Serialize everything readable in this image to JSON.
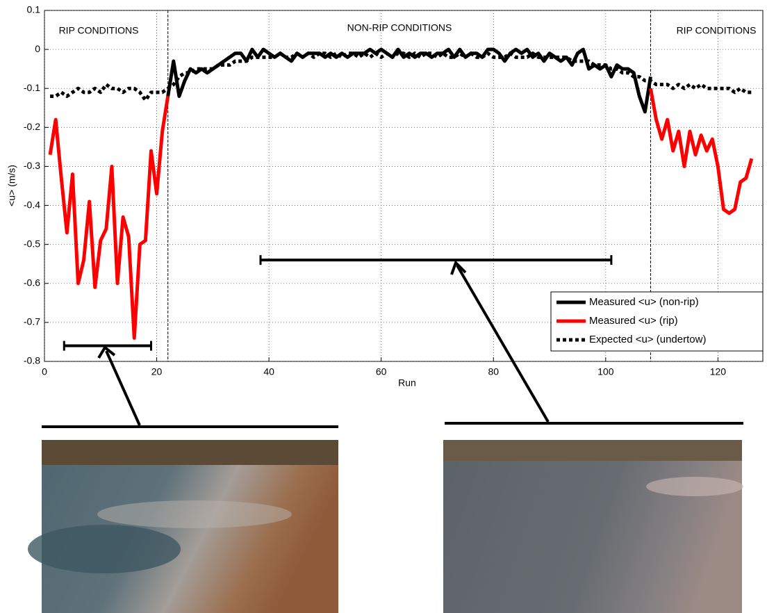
{
  "chart_data": {
    "type": "line",
    "xlabel": "Run",
    "ylabel": "<u> (m/s)",
    "xlim": [
      0,
      128
    ],
    "xticks": [
      0,
      20,
      40,
      60,
      80,
      100,
      120
    ],
    "ylim": [
      -0.8,
      0.1
    ],
    "yticks": [
      -0.8,
      -0.7,
      -0.6,
      -0.5,
      -0.4,
      -0.3,
      -0.2,
      -0.1,
      0,
      0.1
    ],
    "grid": true,
    "legend": "lower right",
    "annotations": [
      "RIP CONDITIONS",
      "NON-RIP CONDITIONS",
      "RIP CONDITIONS"
    ],
    "vlines": [
      22,
      108
    ],
    "ranges": [
      {
        "x": [
          3.5,
          19
        ],
        "y": -0.76
      },
      {
        "x": [
          38.5,
          101
        ],
        "y": -0.54
      }
    ],
    "x": [
      1,
      2,
      3,
      4,
      5,
      6,
      7,
      8,
      9,
      10,
      11,
      12,
      13,
      14,
      15,
      16,
      17,
      18,
      19,
      20,
      21,
      22,
      23,
      24,
      25,
      26,
      27,
      28,
      29,
      30,
      31,
      32,
      33,
      34,
      35,
      36,
      37,
      38,
      39,
      40,
      41,
      42,
      43,
      44,
      45,
      46,
      47,
      48,
      49,
      50,
      51,
      52,
      53,
      54,
      55,
      56,
      57,
      58,
      59,
      60,
      61,
      62,
      63,
      64,
      65,
      66,
      67,
      68,
      69,
      70,
      71,
      72,
      73,
      74,
      75,
      76,
      77,
      78,
      79,
      80,
      81,
      82,
      83,
      84,
      85,
      86,
      87,
      88,
      89,
      90,
      91,
      92,
      93,
      94,
      95,
      96,
      97,
      98,
      99,
      100,
      101,
      102,
      103,
      104,
      105,
      106,
      107,
      108,
      109,
      110,
      111,
      112,
      113,
      114,
      115,
      116,
      117,
      118,
      119,
      120,
      121,
      122,
      123,
      124,
      125,
      126
    ],
    "series": [
      {
        "name": "Measured <u> (non-rip)",
        "color": "#000000",
        "style": "solid",
        "values": [
          null,
          null,
          null,
          null,
          null,
          null,
          null,
          null,
          null,
          null,
          null,
          null,
          null,
          null,
          null,
          null,
          null,
          null,
          null,
          null,
          null,
          -0.12,
          -0.03,
          -0.12,
          -0.08,
          -0.05,
          -0.06,
          -0.05,
          -0.06,
          -0.05,
          -0.04,
          -0.03,
          -0.02,
          -0.01,
          -0.01,
          -0.03,
          0,
          -0.02,
          0,
          -0.01,
          -0.02,
          -0.01,
          -0.02,
          -0.03,
          -0.01,
          -0.02,
          -0.01,
          -0.01,
          -0.01,
          -0.02,
          -0.01,
          -0.02,
          -0.01,
          -0.02,
          -0.01,
          -0.01,
          -0.01,
          0,
          -0.01,
          0,
          -0.01,
          -0.02,
          0,
          -0.02,
          -0.01,
          -0.02,
          -0.01,
          -0.01,
          -0.02,
          -0.01,
          -0.01,
          0,
          -0.02,
          0,
          -0.02,
          -0.01,
          -0.01,
          -0.02,
          0,
          0,
          -0.01,
          -0.03,
          -0.01,
          0,
          -0.01,
          0,
          -0.02,
          -0.01,
          -0.03,
          -0.01,
          -0.02,
          -0.03,
          -0.02,
          -0.04,
          -0.01,
          0,
          -0.05,
          -0.04,
          -0.05,
          -0.04,
          -0.07,
          -0.04,
          -0.05,
          -0.05,
          -0.06,
          -0.12,
          -0.16,
          -0.07,
          null,
          null,
          null,
          null,
          null,
          null,
          null,
          null,
          null,
          null,
          null,
          null,
          null,
          null,
          null,
          null,
          null,
          null
        ]
      },
      {
        "name": "Measured <u> (rip)",
        "color": "#ff0000",
        "style": "solid",
        "values": [
          -0.27,
          -0.18,
          -0.33,
          -0.47,
          -0.32,
          -0.6,
          -0.54,
          -0.39,
          -0.61,
          -0.49,
          -0.46,
          -0.3,
          -0.6,
          -0.43,
          -0.48,
          -0.74,
          -0.5,
          -0.49,
          -0.26,
          -0.37,
          -0.21,
          -0.12,
          null,
          null,
          null,
          null,
          null,
          null,
          null,
          null,
          null,
          null,
          null,
          null,
          null,
          null,
          null,
          null,
          null,
          null,
          null,
          null,
          null,
          null,
          null,
          null,
          null,
          null,
          null,
          null,
          null,
          null,
          null,
          null,
          null,
          null,
          null,
          null,
          null,
          null,
          null,
          null,
          null,
          null,
          null,
          null,
          null,
          null,
          null,
          null,
          null,
          null,
          null,
          null,
          null,
          null,
          null,
          null,
          null,
          null,
          null,
          null,
          null,
          null,
          null,
          null,
          null,
          null,
          null,
          null,
          null,
          null,
          null,
          null,
          null,
          null,
          null,
          null,
          null,
          null,
          null,
          null,
          null,
          null,
          null,
          null,
          null,
          -0.1,
          -0.18,
          -0.23,
          -0.18,
          -0.26,
          -0.21,
          -0.3,
          -0.21,
          -0.27,
          -0.22,
          -0.26,
          -0.23,
          -0.3,
          -0.41,
          -0.42,
          -0.41,
          -0.34,
          -0.33,
          -0.28
        ]
      },
      {
        "name": "Expected <u> (undertow)",
        "color": "#000000",
        "style": "dotted",
        "values": [
          -0.12,
          -0.12,
          -0.11,
          -0.12,
          -0.11,
          -0.1,
          -0.11,
          -0.11,
          -0.1,
          -0.11,
          -0.09,
          -0.1,
          -0.1,
          -0.11,
          -0.1,
          -0.1,
          -0.11,
          -0.13,
          -0.11,
          -0.11,
          -0.11,
          -0.1,
          -0.09,
          -0.07,
          -0.06,
          -0.06,
          -0.05,
          -0.05,
          -0.05,
          -0.05,
          -0.04,
          -0.04,
          -0.04,
          -0.03,
          -0.03,
          -0.03,
          -0.02,
          -0.02,
          -0.02,
          -0.02,
          -0.02,
          -0.01,
          -0.02,
          -0.02,
          -0.01,
          -0.02,
          -0.01,
          -0.02,
          -0.01,
          -0.01,
          -0.02,
          -0.01,
          -0.02,
          -0.01,
          -0.01,
          -0.02,
          -0.01,
          -0.02,
          -0.01,
          -0.02,
          -0.01,
          -0.02,
          -0.01,
          -0.01,
          -0.02,
          -0.01,
          -0.02,
          -0.01,
          -0.01,
          -0.02,
          -0.01,
          -0.02,
          -0.02,
          -0.01,
          -0.02,
          -0.01,
          -0.02,
          -0.02,
          -0.01,
          -0.02,
          -0.02,
          -0.02,
          -0.01,
          -0.02,
          -0.02,
          -0.02,
          -0.01,
          -0.02,
          -0.02,
          -0.02,
          -0.02,
          -0.02,
          -0.02,
          -0.03,
          -0.03,
          -0.03,
          -0.03,
          -0.04,
          -0.04,
          -0.04,
          -0.05,
          -0.05,
          -0.06,
          -0.06,
          -0.07,
          -0.07,
          -0.08,
          -0.08,
          -0.09,
          -0.09,
          -0.09,
          -0.1,
          -0.09,
          -0.1,
          -0.09,
          -0.1,
          -0.09,
          -0.1,
          -0.1,
          -0.1,
          -0.1,
          -0.1,
          -0.11,
          -0.1,
          -0.11,
          -0.11
        ]
      }
    ]
  }
}
